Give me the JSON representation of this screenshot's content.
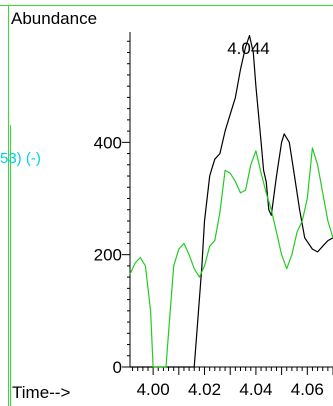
{
  "chart_data": {
    "type": "line",
    "ylabel": "Abundance",
    "xlabel": "Time-->",
    "side_label": "53) (-)",
    "peak_label": "4.044",
    "xlim": [
      3.991,
      4.07
    ],
    "ylim": [
      0,
      600
    ],
    "x_ticks": [
      "4.00",
      "4.02",
      "4.04",
      "4.06"
    ],
    "x_tick_values": [
      4.0,
      4.02,
      4.04,
      4.06
    ],
    "y_ticks": [
      "0",
      "200",
      "400"
    ],
    "y_tick_values": [
      0,
      200,
      400
    ],
    "colors": {
      "frame": "#33dd33",
      "black_trace": "#000000",
      "green_trace": "#22cc22",
      "side_label": "#00d0e0"
    },
    "series": [
      {
        "color": "#000000",
        "points": [
          [
            3.991,
            0
          ],
          [
            4.016,
            0
          ],
          [
            4.017,
            60
          ],
          [
            4.019,
            180
          ],
          [
            4.02,
            260
          ],
          [
            4.022,
            340
          ],
          [
            4.023,
            355
          ],
          [
            4.024,
            370
          ],
          [
            4.026,
            380
          ],
          [
            4.028,
            420
          ],
          [
            4.03,
            450
          ],
          [
            4.032,
            480
          ],
          [
            4.034,
            530
          ],
          [
            4.036,
            570
          ],
          [
            4.0375,
            590
          ],
          [
            4.039,
            560
          ],
          [
            4.04,
            500
          ],
          [
            4.042,
            400
          ],
          [
            4.043,
            350
          ],
          [
            4.044,
            330
          ],
          [
            4.045,
            280
          ],
          [
            4.046,
            270
          ],
          [
            4.048,
            340
          ],
          [
            4.05,
            400
          ],
          [
            4.051,
            415
          ],
          [
            4.053,
            400
          ],
          [
            4.055,
            340
          ],
          [
            4.057,
            280
          ],
          [
            4.059,
            230
          ],
          [
            4.062,
            210
          ],
          [
            4.064,
            205
          ],
          [
            4.066,
            215
          ],
          [
            4.068,
            225
          ],
          [
            4.07,
            230
          ]
        ]
      },
      {
        "color": "#22cc22",
        "points": [
          [
            3.991,
            165
          ],
          [
            3.993,
            185
          ],
          [
            3.995,
            195
          ],
          [
            3.997,
            180
          ],
          [
            3.999,
            100
          ],
          [
            4.0,
            0
          ],
          [
            4.005,
            0
          ],
          [
            4.006,
            60
          ],
          [
            4.008,
            180
          ],
          [
            4.01,
            210
          ],
          [
            4.012,
            220
          ],
          [
            4.014,
            200
          ],
          [
            4.016,
            175
          ],
          [
            4.018,
            160
          ],
          [
            4.02,
            180
          ],
          [
            4.022,
            215
          ],
          [
            4.024,
            225
          ],
          [
            4.026,
            275
          ],
          [
            4.028,
            350
          ],
          [
            4.03,
            345
          ],
          [
            4.032,
            330
          ],
          [
            4.034,
            310
          ],
          [
            4.036,
            315
          ],
          [
            4.038,
            360
          ],
          [
            4.04,
            385
          ],
          [
            4.042,
            345
          ],
          [
            4.044,
            310
          ],
          [
            4.046,
            280
          ],
          [
            4.048,
            240
          ],
          [
            4.05,
            200
          ],
          [
            4.052,
            175
          ],
          [
            4.054,
            200
          ],
          [
            4.056,
            240
          ],
          [
            4.058,
            260
          ],
          [
            4.06,
            300
          ],
          [
            4.062,
            390
          ],
          [
            4.064,
            360
          ],
          [
            4.066,
            310
          ],
          [
            4.068,
            260
          ],
          [
            4.07,
            230
          ]
        ]
      }
    ]
  }
}
